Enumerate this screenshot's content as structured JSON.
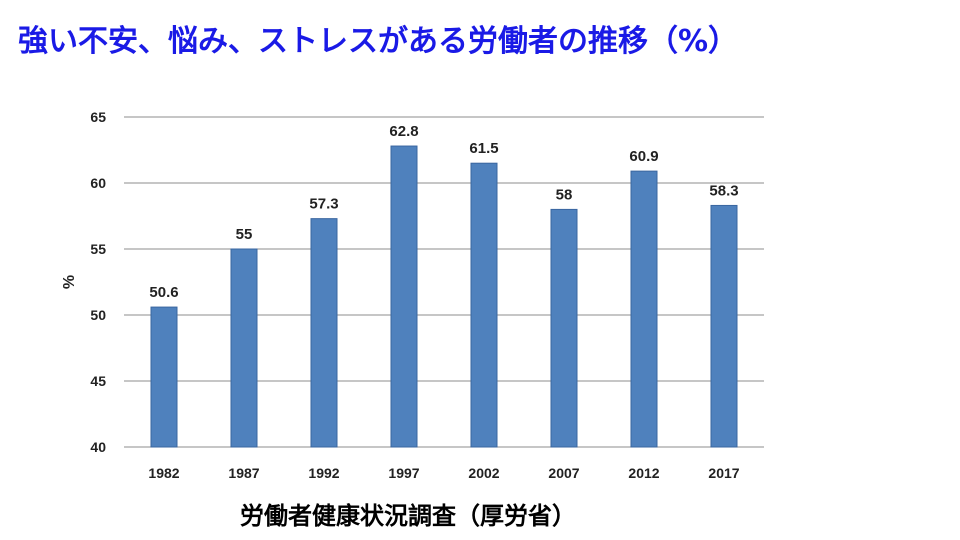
{
  "title": "強い不安、悩み、ストレスがある労働者の推移（%）",
  "source": "労働者健康状況調査（厚労省）",
  "colors": {
    "title": "#1a1ae6",
    "bar_fill": "#4f81bd",
    "bar_stroke": "#3a66a0",
    "gridline": "#8c8c8c"
  },
  "chart_data": {
    "type": "bar",
    "categories": [
      "1982",
      "1987",
      "1992",
      "1997",
      "2002",
      "2007",
      "2012",
      "2017"
    ],
    "values": [
      50.6,
      55,
      57.3,
      62.8,
      61.5,
      58,
      60.9,
      58.3
    ],
    "data_labels": [
      "50.6",
      "55",
      "57.3",
      "62.8",
      "61.5",
      "58",
      "60.9",
      "58.3"
    ],
    "ylabel": "%",
    "ylim": [
      40,
      65
    ],
    "yticks": [
      40,
      45,
      50,
      55,
      60,
      65
    ],
    "grid": true,
    "legend": "none"
  }
}
